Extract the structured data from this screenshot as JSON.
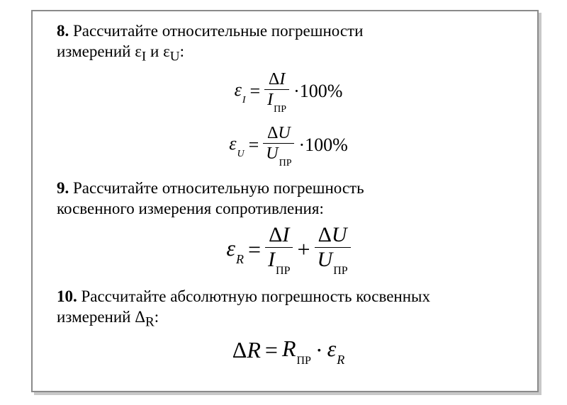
{
  "page": {
    "background": "#ffffff",
    "border_color": "#8a8a8a",
    "shadow_color": "#c8c8c8",
    "text_color": "#000000",
    "font_family": "Times New Roman",
    "base_fontsize_pt": 17
  },
  "item8": {
    "number": "8.",
    "text_line1": " Рассчитайте относительные погрешности",
    "text_line2_prefix": "измерений ε",
    "text_line2_sub1": "I",
    "text_line2_mid": " и ε",
    "text_line2_sub2": "U",
    "text_line2_suffix": ":",
    "formula1": {
      "lhs_symbol": "ε",
      "lhs_sub": "I",
      "eq": "=",
      "num_prefix": "Δ",
      "num_var": "I",
      "den_var": "I",
      "den_sub": "ПР",
      "mult": "·100%"
    },
    "formula2": {
      "lhs_symbol": "ε",
      "lhs_sub": "U",
      "eq": "=",
      "num_prefix": "Δ",
      "num_var": "U",
      "den_var": "U",
      "den_sub": "ПР",
      "mult": "·100%"
    }
  },
  "item9": {
    "number": "9.",
    "text_line1": " Рассчитайте относительную погрешность",
    "text_line2": "косвенного измерения сопротивления:",
    "formula": {
      "lhs_symbol": "ε",
      "lhs_sub": "R",
      "eq": "=",
      "t1_num_prefix": "Δ",
      "t1_num_var": "I",
      "t1_den_var": "I",
      "t1_den_sub": "ПР",
      "plus": "+",
      "t2_num_prefix": "Δ",
      "t2_num_var": "U",
      "t2_den_var": "U",
      "t2_den_sub": "ПР"
    }
  },
  "item10": {
    "number": "10.",
    "text_line1": " Рассчитайте абсолютную погрешность косвенных",
    "text_line2_prefix": "измерений Δ",
    "text_line2_sub": "R",
    "text_line2_suffix": ":",
    "formula": {
      "lhs_prefix": "Δ",
      "lhs_var": "R",
      "eq": "=",
      "r_var": "R",
      "r_sub": "ПР",
      "dot": "·",
      "eps": "ε",
      "eps_sub": "R"
    }
  }
}
